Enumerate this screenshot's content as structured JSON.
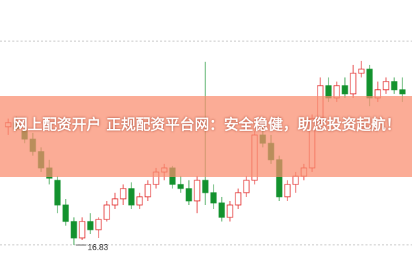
{
  "chart_data": {
    "type": "candlestick",
    "title": "网上配资开户 正规配资平台网：安全稳健，助您投资起航！",
    "open": [
      19.7,
      19.8,
      19.6,
      19.4,
      19.1,
      18.7,
      18.4,
      17.8,
      17.4,
      17.0,
      17.4,
      17.2,
      17.45,
      17.8,
      17.95,
      18.2,
      17.8,
      18.0,
      18.3,
      18.6,
      18.7,
      18.3,
      18.2,
      17.9,
      18.4,
      18.1,
      17.85,
      17.5,
      17.8,
      18.1,
      18.4,
      19.5,
      19.3,
      18.9,
      18.0,
      18.3,
      18.5,
      18.7,
      19.9,
      20.7,
      20.4,
      20.7,
      20.5,
      21.0,
      21.1,
      20.4,
      20.6,
      20.8,
      20.6
    ],
    "high": [
      19.9,
      19.95,
      19.7,
      19.55,
      19.2,
      18.9,
      18.5,
      17.95,
      17.5,
      17.5,
      17.6,
      17.5,
      17.9,
      18.1,
      18.3,
      18.35,
      18.1,
      18.4,
      18.7,
      18.8,
      18.75,
      18.5,
      18.4,
      18.5,
      21.28,
      18.3,
      18.0,
      17.9,
      18.2,
      18.5,
      19.6,
      19.7,
      19.5,
      19.0,
      18.4,
      18.6,
      18.8,
      20.0,
      20.9,
      20.9,
      20.8,
      20.9,
      21.2,
      21.3,
      21.2,
      20.8,
      20.9,
      20.9,
      20.9
    ],
    "low": [
      19.5,
      19.6,
      19.3,
      19.0,
      18.6,
      18.3,
      17.6,
      17.3,
      16.83,
      16.95,
      17.1,
      17.0,
      17.4,
      17.7,
      17.8,
      17.7,
      17.7,
      17.9,
      18.2,
      18.4,
      18.2,
      18.1,
      17.8,
      17.6,
      17.8,
      17.7,
      17.4,
      17.4,
      17.7,
      18.0,
      18.3,
      19.2,
      18.8,
      17.9,
      17.9,
      18.1,
      18.4,
      18.6,
      19.8,
      20.3,
      20.3,
      20.4,
      20.4,
      20.9,
      20.2,
      20.3,
      20.5,
      20.5,
      20.3
    ],
    "close": [
      19.8,
      19.65,
      19.4,
      19.1,
      18.7,
      18.45,
      17.8,
      17.4,
      17.0,
      17.4,
      17.2,
      17.45,
      17.8,
      17.95,
      18.2,
      17.8,
      18.0,
      18.3,
      18.6,
      18.7,
      18.3,
      18.2,
      17.9,
      18.4,
      18.1,
      17.85,
      17.5,
      17.8,
      18.1,
      18.4,
      19.5,
      19.3,
      18.9,
      18.0,
      18.3,
      18.5,
      18.7,
      19.9,
      20.7,
      20.4,
      20.7,
      20.5,
      21.0,
      21.1,
      20.4,
      20.6,
      20.8,
      20.6,
      20.5
    ],
    "low_label": 16.83,
    "up_color": "#e02020",
    "down_color": "#13922e",
    "ylim": [
      16.1,
      22.78
    ]
  }
}
